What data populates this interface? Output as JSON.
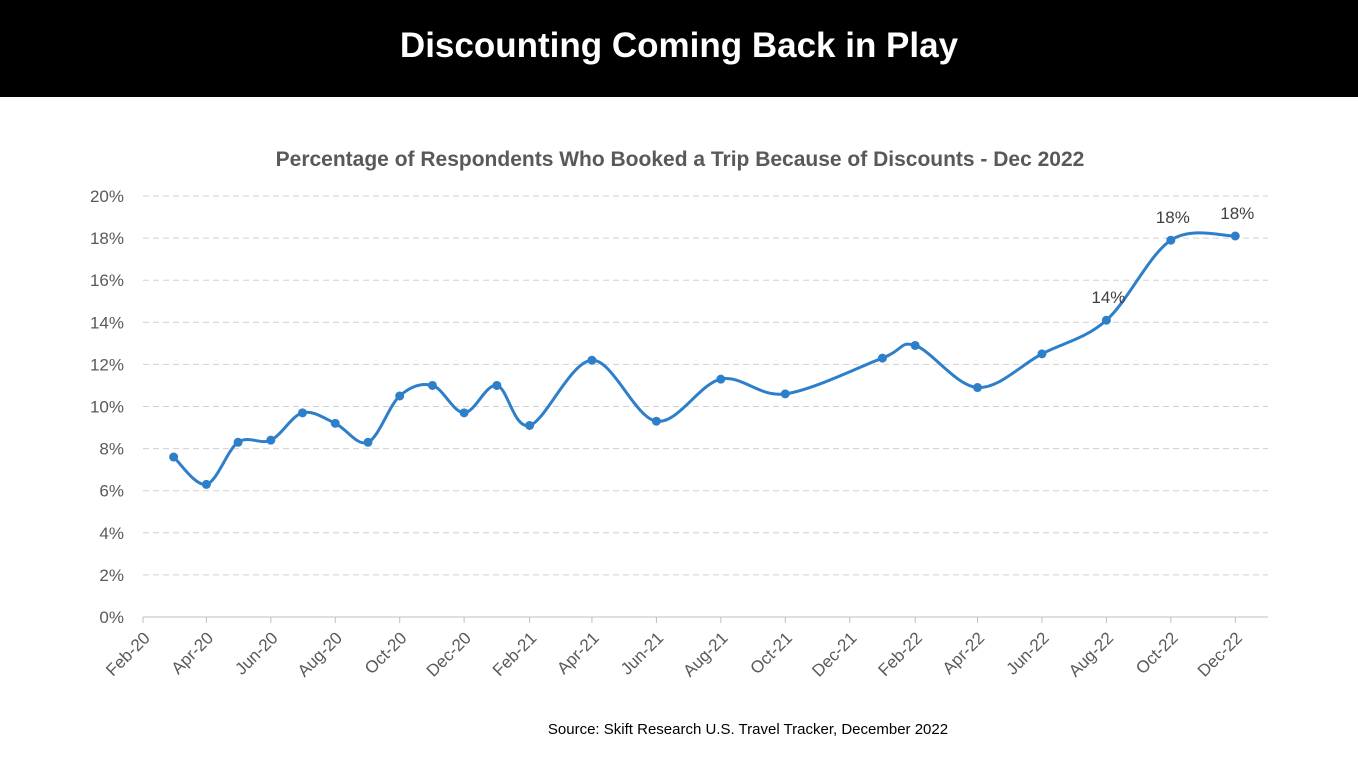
{
  "banner": {
    "title": "Discounting Coming Back in Play"
  },
  "source": "Source: Skift Research U.S. Travel Tracker, December 2022",
  "colors": {
    "line": "#2E7FC9",
    "grid": "#D0D0D0",
    "axis_text": "#595959",
    "banner_bg": "#000000"
  },
  "chart_data": {
    "type": "line",
    "title": "Percentage of Respondents Who Booked a Trip Because of Discounts - Dec 2022",
    "xlabel": "",
    "ylabel": "",
    "ylim": [
      0,
      20
    ],
    "yticks": [
      "0%",
      "2%",
      "4%",
      "6%",
      "8%",
      "10%",
      "12%",
      "14%",
      "16%",
      "18%",
      "20%"
    ],
    "x_tick_labels": [
      "Feb-20",
      "Apr-20",
      "Jun-20",
      "Aug-20",
      "Oct-20",
      "Dec-20",
      "Feb-21",
      "Apr-21",
      "Jun-21",
      "Aug-21",
      "Oct-21",
      "Dec-21",
      "Feb-22",
      "Apr-22",
      "Jun-22",
      "Aug-22",
      "Oct-22",
      "Dec-22"
    ],
    "grid": "horizontal dashed",
    "smooth": true,
    "series": [
      {
        "name": "",
        "points": [
          {
            "date": "2020-03-01",
            "y": 7.6
          },
          {
            "date": "2020-04-01",
            "y": 6.3
          },
          {
            "date": "2020-05-01",
            "y": 8.3
          },
          {
            "date": "2020-06-01",
            "y": 8.4
          },
          {
            "date": "2020-07-01",
            "y": 9.7
          },
          {
            "date": "2020-08-01",
            "y": 9.2
          },
          {
            "date": "2020-09-01",
            "y": 8.3
          },
          {
            "date": "2020-10-01",
            "y": 10.5
          },
          {
            "date": "2020-11-01",
            "y": 11.0
          },
          {
            "date": "2020-12-01",
            "y": 9.7
          },
          {
            "date": "2021-01-01",
            "y": 11.0
          },
          {
            "date": "2021-02-01",
            "y": 9.1
          },
          {
            "date": "2021-04-01",
            "y": 12.2
          },
          {
            "date": "2021-06-01",
            "y": 9.3
          },
          {
            "date": "2021-08-01",
            "y": 11.3
          },
          {
            "date": "2021-10-01",
            "y": 10.6
          },
          {
            "date": "2022-01-01",
            "y": 12.3
          },
          {
            "date": "2022-02-01",
            "y": 12.9
          },
          {
            "date": "2022-04-01",
            "y": 10.9
          },
          {
            "date": "2022-06-01",
            "y": 12.5
          },
          {
            "date": "2022-08-01",
            "y": 14.1
          },
          {
            "date": "2022-10-01",
            "y": 17.9
          },
          {
            "date": "2022-12-01",
            "y": 18.1
          }
        ]
      }
    ],
    "data_labels": [
      {
        "date": "2022-08-01",
        "text": "14%"
      },
      {
        "date": "2022-10-01",
        "text": "18%"
      },
      {
        "date": "2022-12-01",
        "text": "18%"
      }
    ]
  }
}
